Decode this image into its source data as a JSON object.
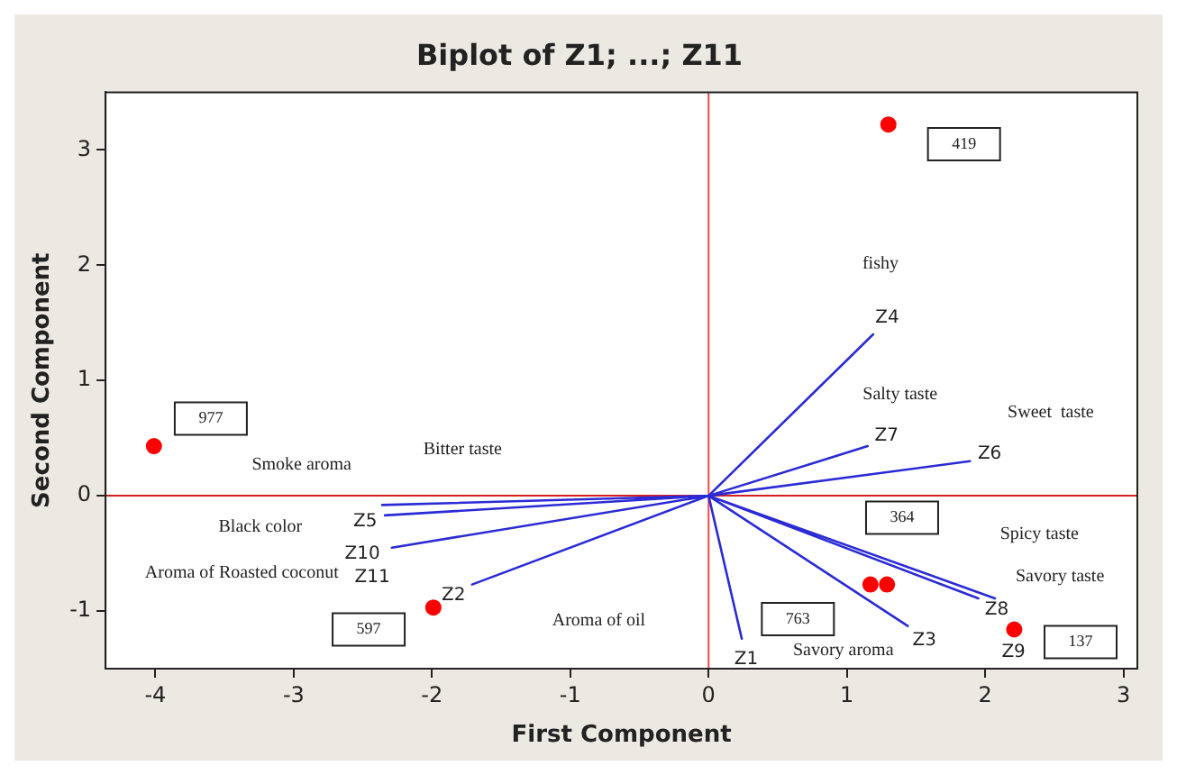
{
  "chart_data": {
    "type": "scatter",
    "title": "Biplot of Z1; ...; Z11",
    "xlabel": "First Component",
    "ylabel": "Second Component",
    "xlim": [
      -4.36,
      3.1
    ],
    "ylim": [
      -1.5,
      3.5
    ],
    "xticks": [
      -4,
      -3,
      -2,
      -1,
      0,
      1,
      2,
      3
    ],
    "yticks": [
      -1,
      0,
      1,
      2,
      3
    ],
    "grid": false,
    "legend": false,
    "marker": "circle",
    "series": [
      {
        "color": "#ff0000",
        "x": [
          -4.01,
          -1.99,
          1.3,
          1.17,
          1.29,
          2.21
        ],
        "values": [
          0.43,
          -0.97,
          3.22,
          -0.77,
          -0.77,
          -1.16
        ]
      },
      {
        "type": "line",
        "marker": "none",
        "color": "#2b2bd6",
        "x": [
          0,
          0.24,
          null,
          0,
          -1.71,
          null,
          0,
          1.44,
          null,
          0,
          1.19,
          null,
          0,
          -2.34,
          null,
          0,
          1.89,
          null,
          0,
          1.15,
          null,
          0,
          1.95,
          null,
          0,
          2.07,
          null,
          0,
          -2.36,
          null,
          0,
          -2.29
        ],
        "values": [
          0,
          -1.24,
          null,
          0,
          -0.77,
          null,
          0,
          -1.13,
          null,
          0,
          1.4,
          null,
          0,
          -0.17,
          null,
          0,
          0.3,
          null,
          0,
          0.43,
          null,
          0,
          -0.89,
          null,
          0,
          -0.89,
          null,
          0,
          -0.08,
          null,
          0,
          -0.45
        ]
      }
    ],
    "ref_lines": [
      {
        "axis": "x",
        "value": 0,
        "color": "#f04848"
      },
      {
        "axis": "y",
        "value": 0,
        "color": "#d42020"
      }
    ],
    "annotations": [
      "977",
      "597",
      "419",
      "763",
      "364",
      "137",
      {
        "text": "Z1",
        "x": 0.24,
        "y": -1.24
      },
      {
        "text": "Z2",
        "x": -1.71,
        "y": -0.77
      },
      {
        "text": "Z3",
        "x": 1.44,
        "y": -1.13
      },
      {
        "text": "Z4",
        "x": 1.19,
        "y": 1.4
      },
      {
        "text": "Z5",
        "x": -2.34,
        "y": -0.17
      },
      {
        "text": "Z6",
        "x": 1.89,
        "y": 0.3
      },
      {
        "text": "Z7",
        "x": 1.15,
        "y": 0.43
      },
      {
        "text": "Z8",
        "x": 1.95,
        "y": -0.89
      },
      {
        "text": "Z9",
        "x": 2.07,
        "y": -0.89
      },
      {
        "text": "Z10",
        "x": -2.36,
        "y": -0.08
      },
      {
        "text": "Z11",
        "x": -2.29,
        "y": -0.45
      },
      "Smoke aroma",
      "Bitter taste",
      "Black color",
      "Aroma of Roasted coconut",
      "Aroma of oil",
      "fishy",
      "Salty taste",
      "Sweet  taste",
      "Spicy taste",
      "Savory taste",
      "Savory aroma"
    ]
  }
}
